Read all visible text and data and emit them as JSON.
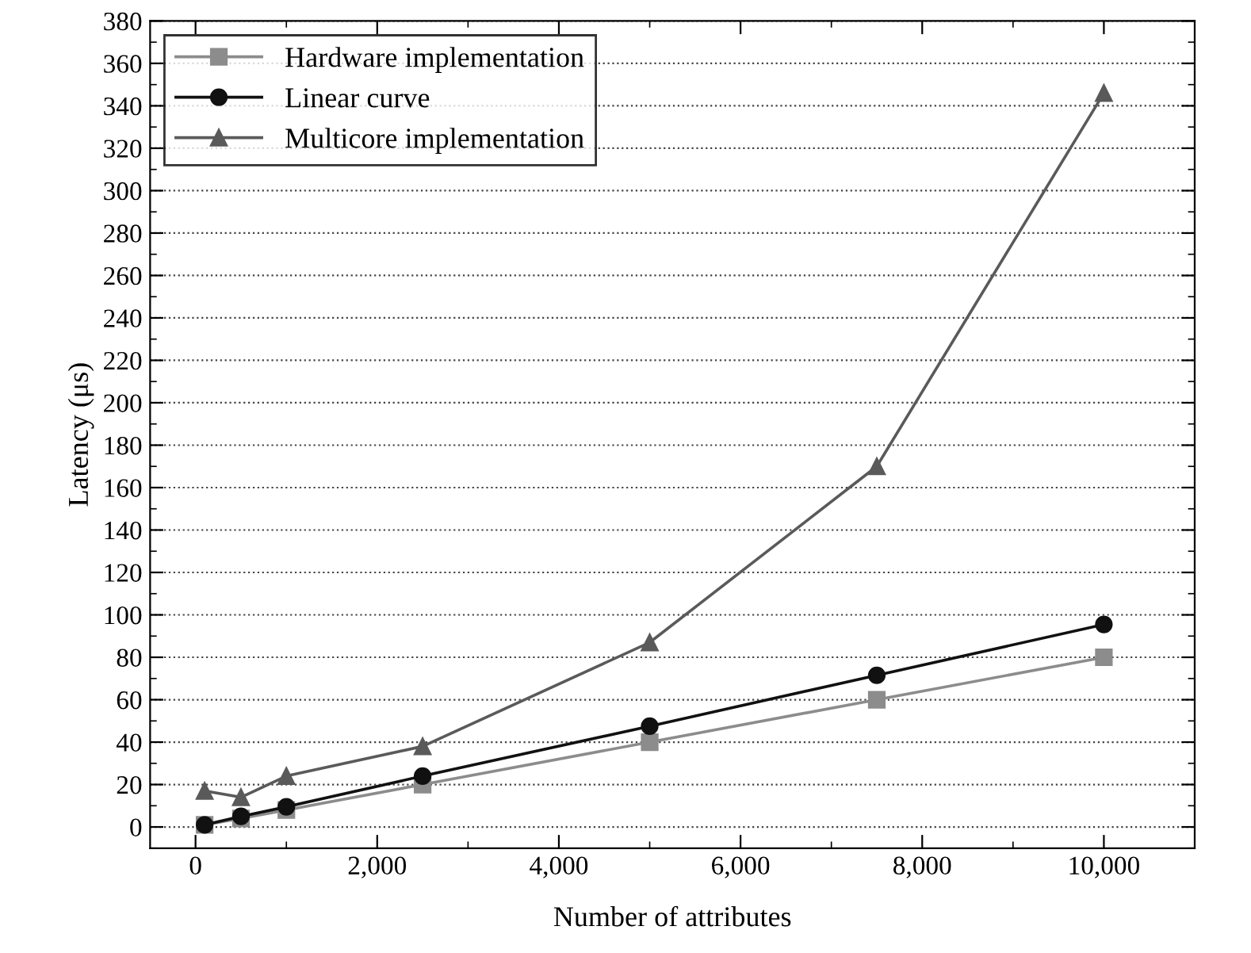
{
  "chart_data": {
    "type": "line",
    "xlabel": "Number of attributes",
    "ylabel": "Latency (μs)",
    "x": [
      100,
      500,
      1000,
      2500,
      5000,
      7500,
      10000
    ],
    "series": [
      {
        "name": "Hardware implementation",
        "color": "#8c8c8c",
        "marker": "square",
        "values": [
          1,
          4,
          8,
          20,
          40,
          60,
          80
        ]
      },
      {
        "name": "Linear curve",
        "color": "#111111",
        "marker": "circle",
        "values": [
          1,
          5,
          9.5,
          24,
          47.5,
          71.5,
          95.5
        ]
      },
      {
        "name": "Multicore implementation",
        "color": "#5a5a5a",
        "marker": "triangle",
        "values": [
          17,
          14,
          24,
          38,
          87,
          170,
          346
        ]
      }
    ],
    "xlim": [
      -500,
      11000
    ],
    "xticks": [
      {
        "value": 0,
        "label": "0"
      },
      {
        "value": 2000,
        "label": "2,000"
      },
      {
        "value": 4000,
        "label": "4,000"
      },
      {
        "value": 6000,
        "label": "6,000"
      },
      {
        "value": 8000,
        "label": "8,000"
      },
      {
        "value": 10000,
        "label": "10,000"
      }
    ],
    "ylim": [
      -10,
      380
    ],
    "yticks": [
      0,
      20,
      40,
      60,
      80,
      100,
      120,
      140,
      160,
      180,
      200,
      220,
      240,
      260,
      280,
      300,
      320,
      340,
      360,
      380
    ],
    "grid": "y",
    "legend": "top left",
    "line_style": "solid"
  }
}
